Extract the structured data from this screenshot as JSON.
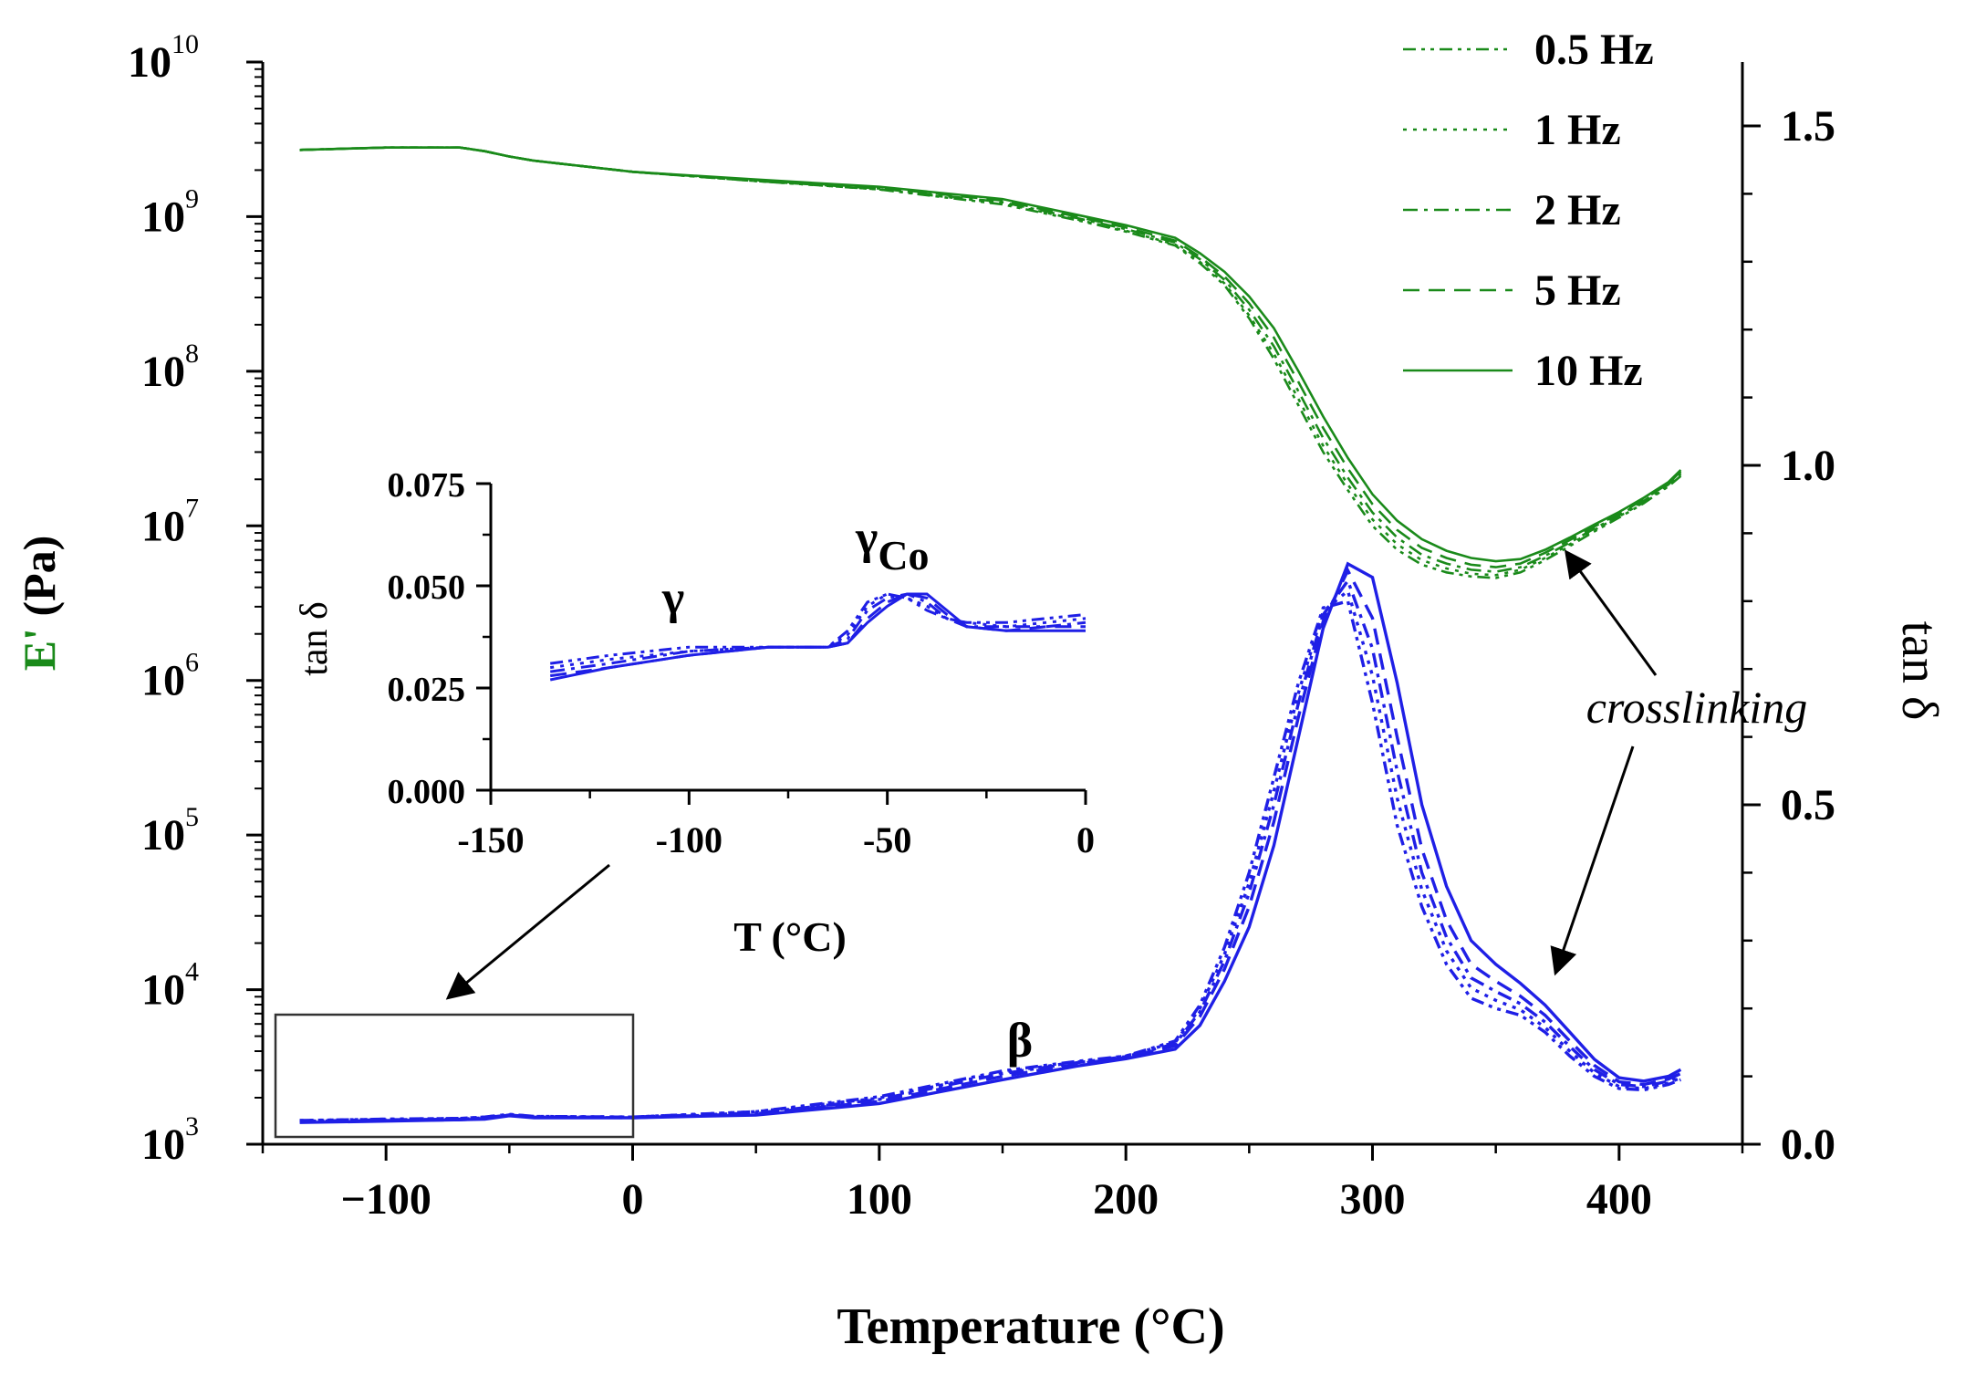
{
  "chart_data": {
    "type": "line",
    "colors": {
      "storage_modulus": "#1a8a1a",
      "tan_delta": "#1f1fe6",
      "axis": "#000000"
    },
    "x_axis": {
      "label": "Temperature (°C)",
      "range": [
        -150,
        450
      ],
      "ticks": [
        -100,
        0,
        100,
        200,
        300,
        400
      ],
      "tick_labels": [
        "−100",
        "0",
        "100",
        "200",
        "300",
        "400"
      ]
    },
    "y_left": {
      "label_main": "E'",
      "label_unit": " (Pa)",
      "scale": "log",
      "range": [
        1000,
        10000000000
      ],
      "exponents": [
        3,
        4,
        5,
        6,
        7,
        8,
        9,
        10
      ],
      "base": "10"
    },
    "y_right": {
      "label": "tan δ",
      "range": [
        0.0,
        1.6
      ],
      "ticks": [
        0.0,
        0.5,
        1.0,
        1.5
      ],
      "tick_labels": [
        "0.0",
        "0.5",
        "1.0",
        "1.5"
      ]
    },
    "legend": {
      "position": "top-right",
      "entries": [
        "0.5 Hz",
        "1 Hz",
        "2 Hz",
        "5 Hz",
        "10 Hz"
      ]
    },
    "series_temperature": [
      -135,
      -100,
      -70,
      -60,
      -50,
      -40,
      0,
      50,
      100,
      150,
      180,
      200,
      220,
      230,
      240,
      250,
      260,
      270,
      280,
      290,
      300,
      310,
      320,
      330,
      340,
      350,
      360,
      370,
      380,
      390,
      400,
      410,
      420,
      425
    ],
    "series": [
      {
        "name": "0.5 Hz",
        "dash": "dashdotdot",
        "E_prime": [
          2700000000.0,
          2800000000.0,
          2800000000.0,
          2650000000.0,
          2450000000.0,
          2300000000.0,
          1950000000.0,
          1700000000.0,
          1500000000.0,
          1200000000.0,
          950000000.0,
          800000000.0,
          650000000.0,
          500000000.0,
          360000000.0,
          220000000.0,
          120000000.0,
          60000000.0,
          30000000.0,
          17000000.0,
          10000000.0,
          7000000.0,
          5600000.0,
          5000000.0,
          4700000.0,
          4600000.0,
          5000000.0,
          6000000.0,
          7400000.0,
          9200000.0,
          11300000.0,
          14000000.0,
          18000000.0,
          21000000.0
        ],
        "tan_delta": [
          0.035,
          0.037,
          0.038,
          0.04,
          0.044,
          0.041,
          0.04,
          0.048,
          0.07,
          0.108,
          0.122,
          0.13,
          0.152,
          0.205,
          0.29,
          0.4,
          0.54,
          0.68,
          0.79,
          0.8,
          0.65,
          0.47,
          0.35,
          0.265,
          0.215,
          0.2,
          0.19,
          0.165,
          0.13,
          0.1,
          0.082,
          0.08,
          0.088,
          0.095
        ]
      },
      {
        "name": "1 Hz",
        "dash": "dot",
        "E_prime": [
          2700000000.0,
          2800000000.0,
          2800000000.0,
          2650000000.0,
          2450000000.0,
          2300000000.0,
          1950000000.0,
          1700000000.0,
          1500000000.0,
          1220000000.0,
          960000000.0,
          810000000.0,
          660000000.0,
          510000000.0,
          370000000.0,
          230000000.0,
          130000000.0,
          66000000.0,
          33000000.0,
          18500000.0,
          11000000.0,
          7600000.0,
          6000000.0,
          5300000.0,
          4900000.0,
          4800000.0,
          5200000.0,
          6200000.0,
          7600000.0,
          9400000.0,
          11500000.0,
          14200000.0,
          18200000.0,
          21500000.0
        ],
        "tan_delta": [
          0.035,
          0.037,
          0.038,
          0.04,
          0.044,
          0.041,
          0.04,
          0.048,
          0.068,
          0.106,
          0.121,
          0.13,
          0.15,
          0.2,
          0.28,
          0.385,
          0.52,
          0.665,
          0.785,
          0.815,
          0.69,
          0.51,
          0.375,
          0.285,
          0.23,
          0.212,
          0.198,
          0.172,
          0.137,
          0.105,
          0.085,
          0.082,
          0.09,
          0.098
        ]
      },
      {
        "name": "2 Hz",
        "dash": "dashdot",
        "E_prime": [
          2700000000.0,
          2800000000.0,
          2800000000.0,
          2650000000.0,
          2450000000.0,
          2300000000.0,
          1950000000.0,
          1700000000.0,
          1520000000.0,
          1240000000.0,
          980000000.0,
          830000000.0,
          680000000.0,
          530000000.0,
          390000000.0,
          250000000.0,
          145000000.0,
          74000000.0,
          37000000.0,
          20500000.0,
          12200000.0,
          8400000.0,
          6500000.0,
          5700000.0,
          5200000.0,
          5050000.0,
          5400000.0,
          6400000.0,
          7800000.0,
          9600000.0,
          11700000.0,
          14500000.0,
          18500000.0,
          22000000.0
        ],
        "tan_delta": [
          0.034,
          0.036,
          0.037,
          0.039,
          0.043,
          0.04,
          0.04,
          0.046,
          0.066,
          0.104,
          0.12,
          0.129,
          0.148,
          0.195,
          0.27,
          0.37,
          0.5,
          0.65,
          0.78,
          0.83,
          0.73,
          0.55,
          0.4,
          0.305,
          0.245,
          0.225,
          0.207,
          0.18,
          0.144,
          0.11,
          0.088,
          0.085,
          0.093,
          0.1
        ]
      },
      {
        "name": "5 Hz",
        "dash": "dash",
        "E_prime": [
          2700000000.0,
          2800000000.0,
          2800000000.0,
          2650000000.0,
          2450000000.0,
          2300000000.0,
          1950000000.0,
          1720000000.0,
          1540000000.0,
          1270000000.0,
          1000000000.0,
          850000000.0,
          700000000.0,
          550000000.0,
          410000000.0,
          275000000.0,
          165000000.0,
          85000000.0,
          43000000.0,
          23500000.0,
          13800000.0,
          9400000.0,
          7200000.0,
          6200000.0,
          5600000.0,
          5400000.0,
          5700000.0,
          6700000.0,
          8100000.0,
          9900000.0,
          12000000.0,
          14800000.0,
          18800000.0,
          22500000.0
        ],
        "tan_delta": [
          0.034,
          0.035,
          0.036,
          0.038,
          0.043,
          0.04,
          0.039,
          0.045,
          0.063,
          0.1,
          0.118,
          0.128,
          0.145,
          0.188,
          0.258,
          0.35,
          0.475,
          0.63,
          0.77,
          0.845,
          0.775,
          0.6,
          0.435,
          0.33,
          0.265,
          0.24,
          0.218,
          0.19,
          0.152,
          0.116,
          0.092,
          0.088,
          0.096,
          0.104
        ]
      },
      {
        "name": "10 Hz",
        "dash": "solid",
        "E_prime": [
          2700000000.0,
          2800000000.0,
          2800000000.0,
          2650000000.0,
          2450000000.0,
          2300000000.0,
          1950000000.0,
          1740000000.0,
          1560000000.0,
          1300000000.0,
          1030000000.0,
          880000000.0,
          730000000.0,
          580000000.0,
          440000000.0,
          305000000.0,
          190000000.0,
          100000000.0,
          51000000.0,
          27500000.0,
          16000000.0,
          10800000.0,
          8200000.0,
          6900000.0,
          6200000.0,
          5900000.0,
          6100000.0,
          7000000.0,
          8400000.0,
          10200000.0,
          12300000.0,
          15200000.0,
          19200000.0,
          23000000.0
        ],
        "tan_delta": [
          0.032,
          0.034,
          0.036,
          0.037,
          0.042,
          0.039,
          0.039,
          0.043,
          0.06,
          0.095,
          0.115,
          0.126,
          0.14,
          0.175,
          0.24,
          0.32,
          0.44,
          0.6,
          0.76,
          0.855,
          0.835,
          0.68,
          0.5,
          0.38,
          0.3,
          0.265,
          0.237,
          0.205,
          0.165,
          0.125,
          0.098,
          0.093,
          0.1,
          0.11
        ]
      }
    ],
    "annotations": {
      "beta": "β",
      "crosslinking": "crosslinking"
    },
    "inset": {
      "x_axis": {
        "label": "T (°C)",
        "range": [
          -150,
          0
        ],
        "ticks": [
          -150,
          -100,
          -50,
          0
        ],
        "tick_labels": [
          "-150",
          "-100",
          "-50",
          "0"
        ]
      },
      "y_axis": {
        "label": "tan δ",
        "range": [
          0.0,
          0.075
        ],
        "ticks": [
          0.0,
          0.025,
          0.05,
          0.075
        ],
        "tick_labels": [
          "0.000",
          "0.025",
          "0.050",
          "0.075"
        ]
      },
      "annotations": {
        "gamma": "γ",
        "gamma_co_symbol": "γ",
        "gamma_co_sub": "Co"
      },
      "temperature": [
        -135,
        -120,
        -100,
        -80,
        -65,
        -60,
        -55,
        -50,
        -45,
        -40,
        -35,
        -30,
        -20,
        -10,
        0
      ],
      "series": [
        {
          "name": "0.5 Hz",
          "tan_delta": [
            0.031,
            0.033,
            0.035,
            0.035,
            0.035,
            0.039,
            0.046,
            0.048,
            0.047,
            0.044,
            0.042,
            0.041,
            0.041,
            0.042,
            0.043
          ]
        },
        {
          "name": "1 Hz",
          "tan_delta": [
            0.03,
            0.032,
            0.034,
            0.035,
            0.035,
            0.038,
            0.045,
            0.048,
            0.047,
            0.045,
            0.042,
            0.041,
            0.04,
            0.041,
            0.042
          ]
        },
        {
          "name": "2 Hz",
          "tan_delta": [
            0.029,
            0.031,
            0.034,
            0.035,
            0.035,
            0.037,
            0.044,
            0.047,
            0.048,
            0.046,
            0.042,
            0.04,
            0.04,
            0.04,
            0.041
          ]
        },
        {
          "name": "5 Hz",
          "tan_delta": [
            0.028,
            0.03,
            0.033,
            0.035,
            0.035,
            0.036,
            0.042,
            0.046,
            0.048,
            0.047,
            0.043,
            0.04,
            0.039,
            0.04,
            0.04
          ]
        },
        {
          "name": "10 Hz",
          "tan_delta": [
            0.027,
            0.03,
            0.033,
            0.035,
            0.035,
            0.036,
            0.041,
            0.045,
            0.048,
            0.048,
            0.044,
            0.04,
            0.039,
            0.039,
            0.039
          ]
        }
      ]
    }
  }
}
